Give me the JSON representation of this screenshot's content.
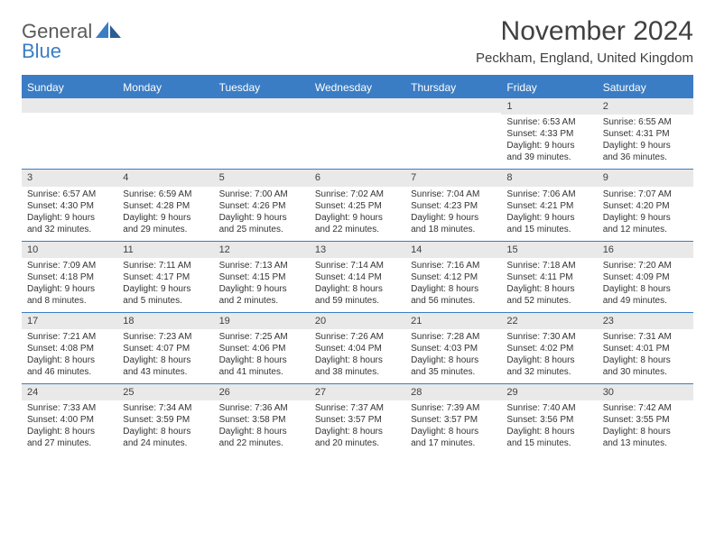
{
  "logo": {
    "line1": "General",
    "line2_prefix": "",
    "line2": "Blue"
  },
  "title": "November 2024",
  "location": "Peckham, England, United Kingdom",
  "colors": {
    "accent": "#3b7dc4",
    "header_bg": "#3b7dc4",
    "header_text": "#ffffff",
    "daynum_bg": "#e9e9e9",
    "text": "#333333",
    "background": "#ffffff"
  },
  "day_headers": [
    "Sunday",
    "Monday",
    "Tuesday",
    "Wednesday",
    "Thursday",
    "Friday",
    "Saturday"
  ],
  "weeks": [
    [
      {
        "n": "",
        "sr": "",
        "ss": "",
        "d1": "",
        "d2": ""
      },
      {
        "n": "",
        "sr": "",
        "ss": "",
        "d1": "",
        "d2": ""
      },
      {
        "n": "",
        "sr": "",
        "ss": "",
        "d1": "",
        "d2": ""
      },
      {
        "n": "",
        "sr": "",
        "ss": "",
        "d1": "",
        "d2": ""
      },
      {
        "n": "",
        "sr": "",
        "ss": "",
        "d1": "",
        "d2": ""
      },
      {
        "n": "1",
        "sr": "Sunrise: 6:53 AM",
        "ss": "Sunset: 4:33 PM",
        "d1": "Daylight: 9 hours",
        "d2": "and 39 minutes."
      },
      {
        "n": "2",
        "sr": "Sunrise: 6:55 AM",
        "ss": "Sunset: 4:31 PM",
        "d1": "Daylight: 9 hours",
        "d2": "and 36 minutes."
      }
    ],
    [
      {
        "n": "3",
        "sr": "Sunrise: 6:57 AM",
        "ss": "Sunset: 4:30 PM",
        "d1": "Daylight: 9 hours",
        "d2": "and 32 minutes."
      },
      {
        "n": "4",
        "sr": "Sunrise: 6:59 AM",
        "ss": "Sunset: 4:28 PM",
        "d1": "Daylight: 9 hours",
        "d2": "and 29 minutes."
      },
      {
        "n": "5",
        "sr": "Sunrise: 7:00 AM",
        "ss": "Sunset: 4:26 PM",
        "d1": "Daylight: 9 hours",
        "d2": "and 25 minutes."
      },
      {
        "n": "6",
        "sr": "Sunrise: 7:02 AM",
        "ss": "Sunset: 4:25 PM",
        "d1": "Daylight: 9 hours",
        "d2": "and 22 minutes."
      },
      {
        "n": "7",
        "sr": "Sunrise: 7:04 AM",
        "ss": "Sunset: 4:23 PM",
        "d1": "Daylight: 9 hours",
        "d2": "and 18 minutes."
      },
      {
        "n": "8",
        "sr": "Sunrise: 7:06 AM",
        "ss": "Sunset: 4:21 PM",
        "d1": "Daylight: 9 hours",
        "d2": "and 15 minutes."
      },
      {
        "n": "9",
        "sr": "Sunrise: 7:07 AM",
        "ss": "Sunset: 4:20 PM",
        "d1": "Daylight: 9 hours",
        "d2": "and 12 minutes."
      }
    ],
    [
      {
        "n": "10",
        "sr": "Sunrise: 7:09 AM",
        "ss": "Sunset: 4:18 PM",
        "d1": "Daylight: 9 hours",
        "d2": "and 8 minutes."
      },
      {
        "n": "11",
        "sr": "Sunrise: 7:11 AM",
        "ss": "Sunset: 4:17 PM",
        "d1": "Daylight: 9 hours",
        "d2": "and 5 minutes."
      },
      {
        "n": "12",
        "sr": "Sunrise: 7:13 AM",
        "ss": "Sunset: 4:15 PM",
        "d1": "Daylight: 9 hours",
        "d2": "and 2 minutes."
      },
      {
        "n": "13",
        "sr": "Sunrise: 7:14 AM",
        "ss": "Sunset: 4:14 PM",
        "d1": "Daylight: 8 hours",
        "d2": "and 59 minutes."
      },
      {
        "n": "14",
        "sr": "Sunrise: 7:16 AM",
        "ss": "Sunset: 4:12 PM",
        "d1": "Daylight: 8 hours",
        "d2": "and 56 minutes."
      },
      {
        "n": "15",
        "sr": "Sunrise: 7:18 AM",
        "ss": "Sunset: 4:11 PM",
        "d1": "Daylight: 8 hours",
        "d2": "and 52 minutes."
      },
      {
        "n": "16",
        "sr": "Sunrise: 7:20 AM",
        "ss": "Sunset: 4:09 PM",
        "d1": "Daylight: 8 hours",
        "d2": "and 49 minutes."
      }
    ],
    [
      {
        "n": "17",
        "sr": "Sunrise: 7:21 AM",
        "ss": "Sunset: 4:08 PM",
        "d1": "Daylight: 8 hours",
        "d2": "and 46 minutes."
      },
      {
        "n": "18",
        "sr": "Sunrise: 7:23 AM",
        "ss": "Sunset: 4:07 PM",
        "d1": "Daylight: 8 hours",
        "d2": "and 43 minutes."
      },
      {
        "n": "19",
        "sr": "Sunrise: 7:25 AM",
        "ss": "Sunset: 4:06 PM",
        "d1": "Daylight: 8 hours",
        "d2": "and 41 minutes."
      },
      {
        "n": "20",
        "sr": "Sunrise: 7:26 AM",
        "ss": "Sunset: 4:04 PM",
        "d1": "Daylight: 8 hours",
        "d2": "and 38 minutes."
      },
      {
        "n": "21",
        "sr": "Sunrise: 7:28 AM",
        "ss": "Sunset: 4:03 PM",
        "d1": "Daylight: 8 hours",
        "d2": "and 35 minutes."
      },
      {
        "n": "22",
        "sr": "Sunrise: 7:30 AM",
        "ss": "Sunset: 4:02 PM",
        "d1": "Daylight: 8 hours",
        "d2": "and 32 minutes."
      },
      {
        "n": "23",
        "sr": "Sunrise: 7:31 AM",
        "ss": "Sunset: 4:01 PM",
        "d1": "Daylight: 8 hours",
        "d2": "and 30 minutes."
      }
    ],
    [
      {
        "n": "24",
        "sr": "Sunrise: 7:33 AM",
        "ss": "Sunset: 4:00 PM",
        "d1": "Daylight: 8 hours",
        "d2": "and 27 minutes."
      },
      {
        "n": "25",
        "sr": "Sunrise: 7:34 AM",
        "ss": "Sunset: 3:59 PM",
        "d1": "Daylight: 8 hours",
        "d2": "and 24 minutes."
      },
      {
        "n": "26",
        "sr": "Sunrise: 7:36 AM",
        "ss": "Sunset: 3:58 PM",
        "d1": "Daylight: 8 hours",
        "d2": "and 22 minutes."
      },
      {
        "n": "27",
        "sr": "Sunrise: 7:37 AM",
        "ss": "Sunset: 3:57 PM",
        "d1": "Daylight: 8 hours",
        "d2": "and 20 minutes."
      },
      {
        "n": "28",
        "sr": "Sunrise: 7:39 AM",
        "ss": "Sunset: 3:57 PM",
        "d1": "Daylight: 8 hours",
        "d2": "and 17 minutes."
      },
      {
        "n": "29",
        "sr": "Sunrise: 7:40 AM",
        "ss": "Sunset: 3:56 PM",
        "d1": "Daylight: 8 hours",
        "d2": "and 15 minutes."
      },
      {
        "n": "30",
        "sr": "Sunrise: 7:42 AM",
        "ss": "Sunset: 3:55 PM",
        "d1": "Daylight: 8 hours",
        "d2": "and 13 minutes."
      }
    ]
  ]
}
